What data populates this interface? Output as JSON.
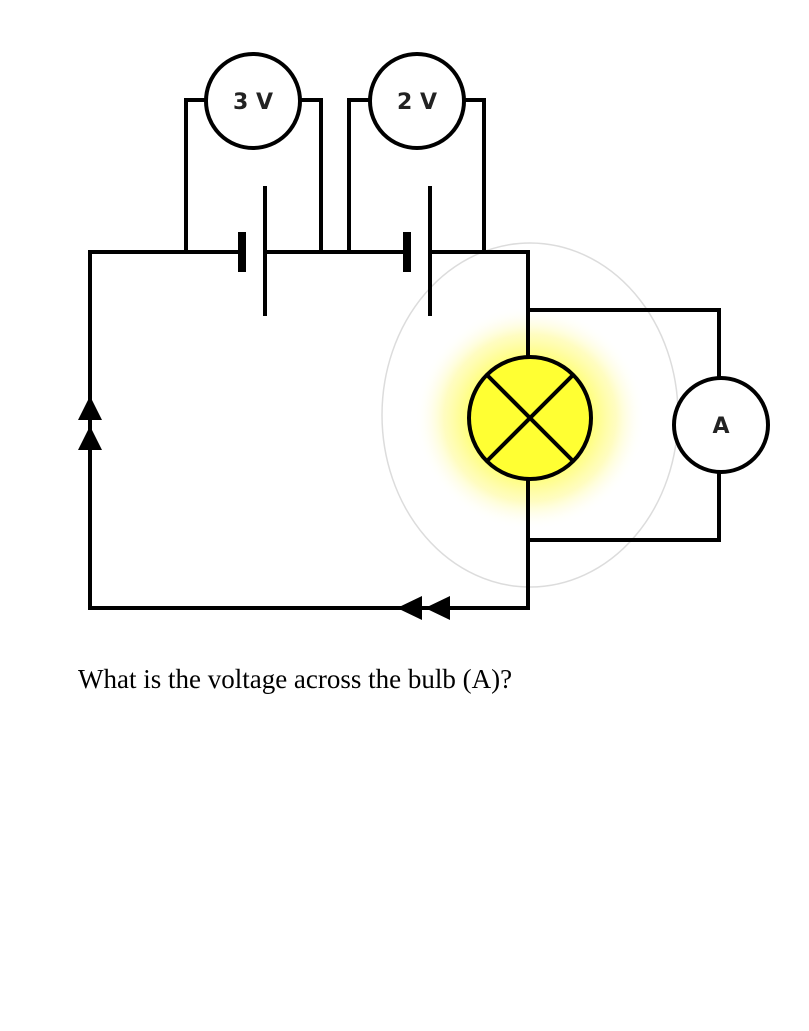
{
  "diagram": {
    "meters": [
      {
        "id": "voltmeter-1",
        "label": "3 V"
      },
      {
        "id": "voltmeter-2",
        "label": "2 V"
      },
      {
        "id": "ammeter",
        "label": "A"
      }
    ],
    "bulb_glow_color": "#ffff33",
    "wire_color": "#000000"
  },
  "question": "What is the voltage across the bulb (A)?"
}
